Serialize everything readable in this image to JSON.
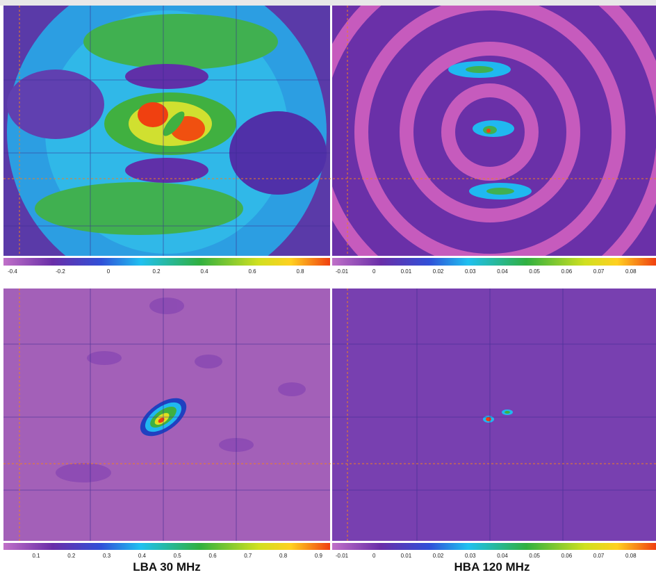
{
  "panels": [
    {
      "colorbar_ticks": [
        -0.4,
        -0.2,
        0,
        0.2,
        0.4,
        0.6,
        0.8
      ]
    },
    {
      "colorbar_ticks": [
        -0.01,
        0,
        0.01,
        0.02,
        0.03,
        0.04,
        0.05,
        0.06,
        0.07,
        0.08
      ]
    },
    {
      "colorbar_ticks": [
        0.1,
        0.2,
        0.3,
        0.4,
        0.5,
        0.6,
        0.7,
        0.8,
        0.9
      ]
    },
    {
      "colorbar_ticks": [
        -0.01,
        0,
        0.01,
        0.02,
        0.03,
        0.04,
        0.05,
        0.06,
        0.07,
        0.08
      ]
    }
  ],
  "captions": [
    "LBA 30 MHz",
    "HBA 120 MHz"
  ]
}
